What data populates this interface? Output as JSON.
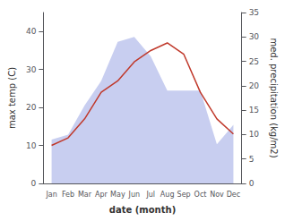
{
  "chart_data": {
    "type": "line",
    "categories": [
      "Jan",
      "Feb",
      "Mar",
      "Apr",
      "May",
      "Jun",
      "Jul",
      "Aug",
      "Sep",
      "Oct",
      "Nov",
      "Dec"
    ],
    "xlabel": "date (month)",
    "ylabel": "max temp (C)",
    "y2label": "med. precipitation (kg/m2)",
    "ylim": [
      0,
      45
    ],
    "yticks": [
      0,
      10,
      20,
      30,
      40
    ],
    "y2lim": [
      0,
      35
    ],
    "y2ticks": [
      0,
      5,
      10,
      15,
      20,
      25,
      30,
      35
    ],
    "grid": false,
    "series": [
      {
        "type": "area",
        "axis": "y2",
        "color": "#aab4e8",
        "values": [
          9,
          10,
          16,
          21,
          29,
          30,
          26,
          19,
          19,
          19,
          8,
          12
        ]
      },
      {
        "type": "line",
        "color": "#c0392b",
        "values": [
          10,
          12,
          17,
          24,
          27,
          32,
          35,
          37,
          34,
          24,
          17,
          13
        ]
      }
    ]
  }
}
